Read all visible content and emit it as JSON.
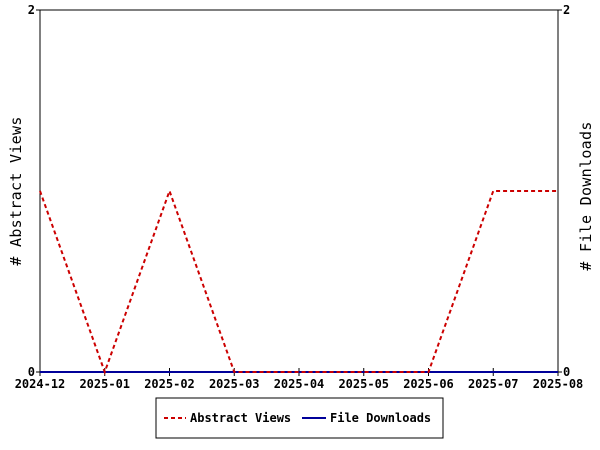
{
  "chart_data": {
    "type": "line",
    "x": [
      "2024-12",
      "2025-01",
      "2025-02",
      "2025-03",
      "2025-04",
      "2025-05",
      "2025-06",
      "2025-07",
      "2025-08"
    ],
    "series": [
      {
        "name": "Abstract Views",
        "axis": "left",
        "color": "#cc0000",
        "style": "dashed",
        "values": [
          1,
          0,
          1,
          0,
          0,
          0,
          0,
          1,
          1
        ]
      },
      {
        "name": "File Downloads",
        "axis": "right",
        "color": "#000099",
        "style": "solid",
        "values": [
          0,
          0,
          0,
          0,
          0,
          0,
          0,
          0,
          0
        ]
      }
    ],
    "ylabel_left": "# Abstract Views",
    "ylabel_right": "# File Downloads",
    "ylim_left": [
      0,
      2
    ],
    "ylim_right": [
      0,
      2
    ],
    "yticks_left": [
      "0",
      "2"
    ],
    "yticks_right": [
      "0",
      "2"
    ],
    "grid": false,
    "legend_position": "bottom-center"
  }
}
